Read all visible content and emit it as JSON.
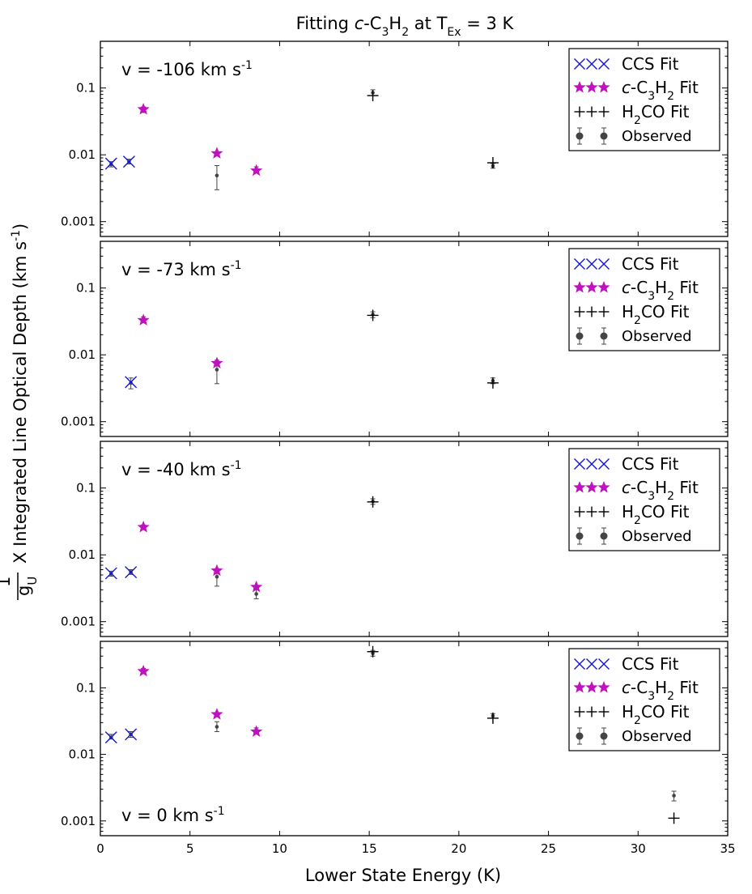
{
  "title": {
    "prefix": "Fitting ",
    "italic": "c",
    "species_a": "-C",
    "sub1": "3",
    "species_b": "H",
    "sub2": "2",
    "mid": " at T",
    "tsub": "Ex",
    "suffix": " = 3 K"
  },
  "xlabel": "Lower State Energy (K)",
  "ylabel": {
    "num": "1",
    "den": "g",
    "den_sub": "U",
    "times": "X",
    "text": "Integrated Line Optical Depth (km s",
    "sup": "-1",
    "close": ")"
  },
  "legend": {
    "ccs": "CCS  Fit",
    "c3h2": {
      "italic": "c",
      "a": "-C",
      "s1": "3",
      "b": "H",
      "s2": "2",
      "c": "  Fit"
    },
    "h2co": {
      "a": "H",
      "s1": "2",
      "b": "CO  Fit"
    },
    "observed": "Observed"
  },
  "colors": {
    "ccs": "#1515d6",
    "c3h2": "#bf11bf",
    "h2co": "#000000",
    "observed": "#444444"
  },
  "chart_data": [
    {
      "type": "scatter",
      "panel_label": "v = -106 km s",
      "panel_label_sup": "-1",
      "xlim": [
        0,
        35
      ],
      "ylim": [
        0.0006,
        0.5
      ],
      "yscale": "log",
      "xticks": [
        0,
        5,
        10,
        15,
        20,
        25,
        30,
        35
      ],
      "yticks": [
        {
          "v": 0.001,
          "t": "0.001"
        },
        {
          "v": 0.01,
          "t": "0.01"
        },
        {
          "v": 0.1,
          "t": "0.1"
        }
      ],
      "observed": [
        {
          "x": 0.6,
          "y": 0.0072,
          "lo": 0.0066,
          "hi": 0.0079
        },
        {
          "x": 1.6,
          "y": 0.0079,
          "lo": 0.0073,
          "hi": 0.0086
        },
        {
          "x": 2.4,
          "y": 0.047,
          "lo": 0.043,
          "hi": 0.052
        },
        {
          "x": 6.5,
          "y": 0.0049,
          "lo": 0.003,
          "hi": 0.0069
        },
        {
          "x": 8.7,
          "y": 0.006,
          "lo": 0.0055,
          "hi": 0.0066
        },
        {
          "x": 15.2,
          "y": 0.085,
          "lo": 0.077,
          "hi": 0.094
        },
        {
          "x": 21.9,
          "y": 0.0068,
          "lo": 0.0063,
          "hi": 0.0074
        }
      ],
      "ccs_fit": [
        {
          "x": 0.6,
          "y": 0.0074
        },
        {
          "x": 1.6,
          "y": 0.0079
        }
      ],
      "c3h2_fit": [
        {
          "x": 2.4,
          "y": 0.048
        },
        {
          "x": 6.5,
          "y": 0.0105
        },
        {
          "x": 8.7,
          "y": 0.0058
        }
      ],
      "h2co_fit": [
        {
          "x": 15.2,
          "y": 0.077
        },
        {
          "x": 21.9,
          "y": 0.0076
        }
      ]
    },
    {
      "type": "scatter",
      "panel_label": "v = -73 km s",
      "panel_label_sup": "-1",
      "xlim": [
        0,
        35
      ],
      "ylim": [
        0.0006,
        0.5
      ],
      "yscale": "log",
      "xticks": [
        0,
        5,
        10,
        15,
        20,
        25,
        30,
        35
      ],
      "yticks": [
        {
          "v": 0.001,
          "t": "0.001"
        },
        {
          "v": 0.01,
          "t": "0.01"
        },
        {
          "v": 0.1,
          "t": "0.1"
        }
      ],
      "observed": [
        {
          "x": 1.7,
          "y": 0.0038,
          "lo": 0.0031,
          "hi": 0.0045
        },
        {
          "x": 2.4,
          "y": 0.034,
          "lo": 0.031,
          "hi": 0.037
        },
        {
          "x": 6.5,
          "y": 0.006,
          "lo": 0.0037,
          "hi": 0.0083
        },
        {
          "x": 15.2,
          "y": 0.04,
          "lo": 0.036,
          "hi": 0.044
        },
        {
          "x": 21.9,
          "y": 0.0041,
          "lo": 0.0037,
          "hi": 0.0045
        }
      ],
      "ccs_fit": [
        {
          "x": 1.7,
          "y": 0.0039
        }
      ],
      "c3h2_fit": [
        {
          "x": 2.4,
          "y": 0.033
        },
        {
          "x": 6.5,
          "y": 0.0075
        }
      ],
      "h2co_fit": [
        {
          "x": 15.2,
          "y": 0.039
        },
        {
          "x": 21.9,
          "y": 0.0038
        }
      ]
    },
    {
      "type": "scatter",
      "panel_label": "v = -40 km s",
      "panel_label_sup": "-1",
      "xlim": [
        0,
        35
      ],
      "ylim": [
        0.0006,
        0.5
      ],
      "yscale": "log",
      "xticks": [
        0,
        5,
        10,
        15,
        20,
        25,
        30,
        35
      ],
      "yticks": [
        {
          "v": 0.001,
          "t": "0.001"
        },
        {
          "v": 0.01,
          "t": "0.01"
        },
        {
          "v": 0.1,
          "t": "0.1"
        }
      ],
      "observed": [
        {
          "x": 0.6,
          "y": 0.0052,
          "lo": 0.0048,
          "hi": 0.0057
        },
        {
          "x": 1.7,
          "y": 0.0055,
          "lo": 0.0051,
          "hi": 0.006
        },
        {
          "x": 2.4,
          "y": 0.026,
          "lo": 0.024,
          "hi": 0.028
        },
        {
          "x": 6.5,
          "y": 0.0047,
          "lo": 0.0034,
          "hi": 0.006
        },
        {
          "x": 8.7,
          "y": 0.0026,
          "lo": 0.0022,
          "hi": 0.003
        },
        {
          "x": 15.2,
          "y": 0.063,
          "lo": 0.057,
          "hi": 0.069
        }
      ],
      "ccs_fit": [
        {
          "x": 0.6,
          "y": 0.0053
        },
        {
          "x": 1.7,
          "y": 0.0055
        }
      ],
      "c3h2_fit": [
        {
          "x": 2.4,
          "y": 0.026
        },
        {
          "x": 6.5,
          "y": 0.0058
        },
        {
          "x": 8.7,
          "y": 0.0033
        }
      ],
      "h2co_fit": [
        {
          "x": 15.2,
          "y": 0.062
        }
      ]
    },
    {
      "type": "scatter",
      "panel_label": "v = 0 km s",
      "panel_label_sup": "-1",
      "xlim": [
        0,
        35
      ],
      "ylim": [
        0.0006,
        0.5
      ],
      "yscale": "log",
      "xticks": [
        0,
        5,
        10,
        15,
        20,
        25,
        30,
        35
      ],
      "yticks": [
        {
          "v": 0.001,
          "t": "0.001"
        },
        {
          "v": 0.01,
          "t": "0.01"
        },
        {
          "v": 0.1,
          "t": "0.1"
        }
      ],
      "xlabel_ticks": true,
      "observed": [
        {
          "x": 0.6,
          "y": 0.018,
          "lo": 0.017,
          "hi": 0.02
        },
        {
          "x": 1.7,
          "y": 0.02,
          "lo": 0.018,
          "hi": 0.022
        },
        {
          "x": 2.4,
          "y": 0.18,
          "lo": 0.165,
          "hi": 0.196
        },
        {
          "x": 6.5,
          "y": 0.026,
          "lo": 0.022,
          "hi": 0.031
        },
        {
          "x": 8.7,
          "y": 0.023,
          "lo": 0.021,
          "hi": 0.025
        },
        {
          "x": 15.2,
          "y": 0.33,
          "lo": 0.3,
          "hi": 0.365
        },
        {
          "x": 21.9,
          "y": 0.038,
          "lo": 0.035,
          "hi": 0.041
        },
        {
          "x": 32.0,
          "y": 0.0024,
          "lo": 0.002,
          "hi": 0.0028
        }
      ],
      "ccs_fit": [
        {
          "x": 0.6,
          "y": 0.018
        },
        {
          "x": 1.7,
          "y": 0.02
        }
      ],
      "c3h2_fit": [
        {
          "x": 2.4,
          "y": 0.178
        },
        {
          "x": 6.5,
          "y": 0.04
        },
        {
          "x": 8.7,
          "y": 0.022
        }
      ],
      "h2co_fit": [
        {
          "x": 15.2,
          "y": 0.35
        },
        {
          "x": 21.9,
          "y": 0.035
        },
        {
          "x": 32.0,
          "y": 0.0011
        }
      ]
    }
  ]
}
